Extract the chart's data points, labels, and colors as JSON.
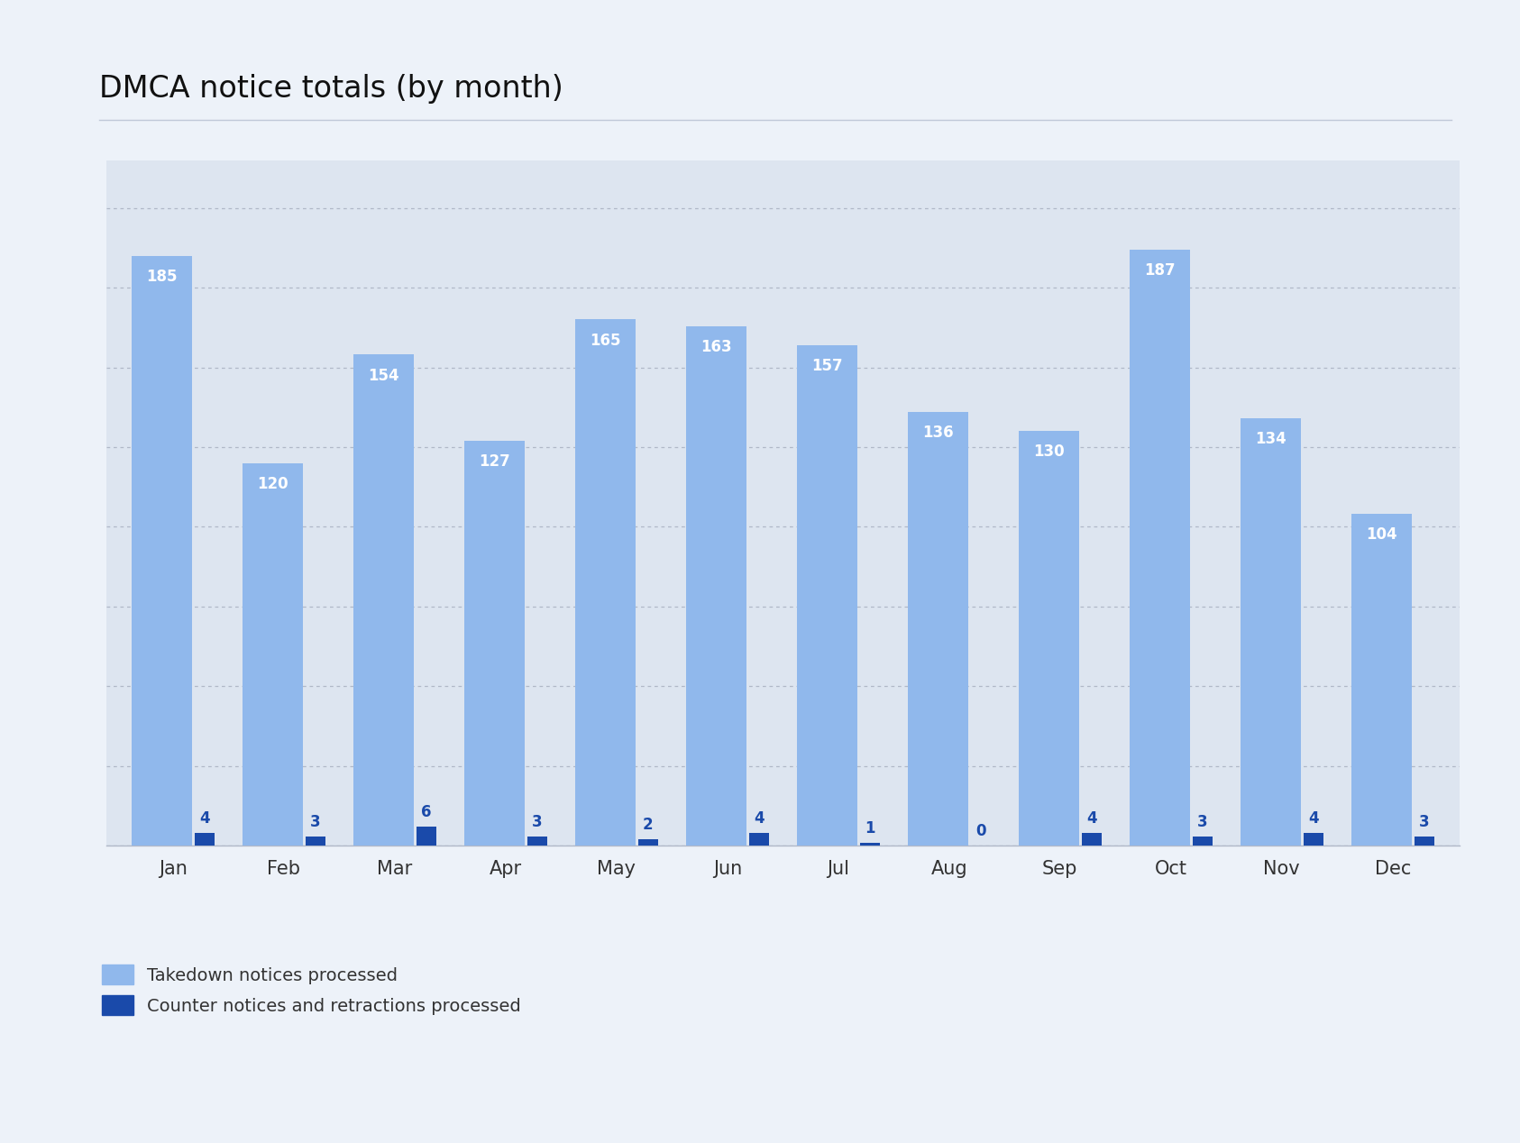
{
  "title": "DMCA notice totals (by month)",
  "months": [
    "Jan",
    "Feb",
    "Mar",
    "Apr",
    "May",
    "Jun",
    "Jul",
    "Aug",
    "Sep",
    "Oct",
    "Nov",
    "Dec"
  ],
  "takedown": [
    185,
    120,
    154,
    127,
    165,
    163,
    157,
    136,
    130,
    187,
    134,
    104
  ],
  "counter": [
    4,
    3,
    6,
    3,
    2,
    4,
    1,
    0,
    4,
    3,
    4,
    3
  ],
  "takedown_color": "#90b8ec",
  "counter_color": "#1a4aaa",
  "background_color": "#edf2f9",
  "plot_bg_color": "#dde5f0",
  "outer_bg_color": "#edf2f9",
  "title_color": "#111111",
  "label_color_takedown": "#ffffff",
  "label_color_counter": "#1a4aaa",
  "takedown_bar_width": 0.55,
  "counter_bar_width": 0.18,
  "ylim": [
    0,
    215
  ],
  "legend_takedown": "Takedown notices processed",
  "legend_counter": "Counter notices and retractions processed",
  "title_fontsize": 24,
  "tick_fontsize": 15,
  "label_fontsize": 12,
  "legend_fontsize": 14
}
